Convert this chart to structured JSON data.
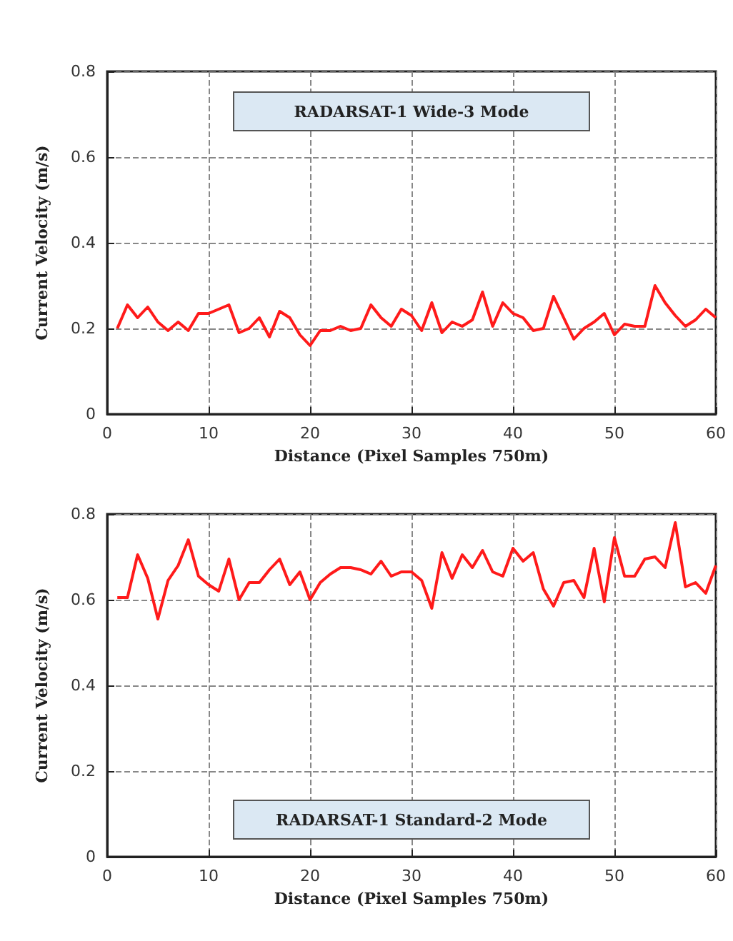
{
  "chart_data": [
    {
      "type": "line",
      "xlabel": "Distance (Pixel Samples 750m)",
      "ylabel": "Current Velocity (m/s)",
      "annotations": [
        "RADARSAT-1 Wide-3 Mode"
      ],
      "x": [
        1,
        2,
        3,
        4,
        5,
        6,
        7,
        8,
        9,
        10,
        11,
        12,
        13,
        14,
        15,
        16,
        17,
        18,
        19,
        20,
        21,
        22,
        23,
        24,
        25,
        26,
        27,
        28,
        29,
        30,
        31,
        32,
        33,
        34,
        35,
        36,
        37,
        38,
        39,
        40,
        41,
        42,
        43,
        44,
        45,
        46,
        47,
        48,
        49,
        50,
        51,
        52,
        53,
        54,
        55,
        56,
        57,
        58,
        59,
        60
      ],
      "series": [
        {
          "color": "#ff1a1a",
          "values": [
            0.2,
            0.255,
            0.225,
            0.25,
            0.215,
            0.195,
            0.215,
            0.195,
            0.235,
            0.235,
            0.245,
            0.255,
            0.19,
            0.2,
            0.225,
            0.18,
            0.24,
            0.225,
            0.185,
            0.16,
            0.195,
            0.195,
            0.205,
            0.195,
            0.2,
            0.255,
            0.225,
            0.205,
            0.245,
            0.23,
            0.195,
            0.26,
            0.19,
            0.215,
            0.205,
            0.22,
            0.285,
            0.205,
            0.26,
            0.235,
            0.225,
            0.195,
            0.2,
            0.275,
            0.225,
            0.175,
            0.2,
            0.215,
            0.235,
            0.185,
            0.21,
            0.205,
            0.205,
            0.3,
            0.26,
            0.23,
            0.205,
            0.22,
            0.245,
            0.225
          ]
        }
      ],
      "xlim": [
        0,
        60
      ],
      "xticks": [
        0,
        10,
        20,
        30,
        40,
        50,
        60
      ],
      "ylim": [
        0,
        0.8
      ],
      "yticks": [
        0,
        0.2,
        0.4,
        0.6,
        0.8
      ],
      "grid": true,
      "marker": "none",
      "line_style": "solid"
    },
    {
      "type": "line",
      "xlabel": "Distance (Pixel Samples 750m)",
      "ylabel": "Current Velocity (m/s)",
      "annotations": [
        "RADARSAT-1 Standard-2 Mode"
      ],
      "x": [
        1,
        2,
        3,
        4,
        5,
        6,
        7,
        8,
        9,
        10,
        11,
        12,
        13,
        14,
        15,
        16,
        17,
        18,
        19,
        20,
        21,
        22,
        23,
        24,
        25,
        26,
        27,
        28,
        29,
        30,
        31,
        32,
        33,
        34,
        35,
        36,
        37,
        38,
        39,
        40,
        41,
        42,
        43,
        44,
        45,
        46,
        47,
        48,
        49,
        50,
        51,
        52,
        53,
        54,
        55,
        56,
        57,
        58,
        59,
        60
      ],
      "series": [
        {
          "color": "#ff1a1a",
          "values": [
            0.605,
            0.605,
            0.705,
            0.65,
            0.555,
            0.645,
            0.68,
            0.74,
            0.655,
            0.635,
            0.62,
            0.695,
            0.6,
            0.64,
            0.64,
            0.67,
            0.695,
            0.635,
            0.665,
            0.6,
            0.64,
            0.66,
            0.675,
            0.675,
            0.67,
            0.66,
            0.69,
            0.655,
            0.665,
            0.665,
            0.645,
            0.58,
            0.71,
            0.65,
            0.705,
            0.675,
            0.715,
            0.665,
            0.655,
            0.72,
            0.69,
            0.71,
            0.625,
            0.585,
            0.64,
            0.645,
            0.605,
            0.72,
            0.595,
            0.745,
            0.655,
            0.655,
            0.695,
            0.7,
            0.675,
            0.78,
            0.63,
            0.64,
            0.615,
            0.68
          ]
        }
      ],
      "xlim": [
        0,
        60
      ],
      "xticks": [
        0,
        10,
        20,
        30,
        40,
        50,
        60
      ],
      "ylim": [
        0,
        0.8
      ],
      "yticks": [
        0,
        0.2,
        0.4,
        0.6,
        0.8
      ],
      "grid": true,
      "marker": "none",
      "line_style": "solid"
    }
  ]
}
